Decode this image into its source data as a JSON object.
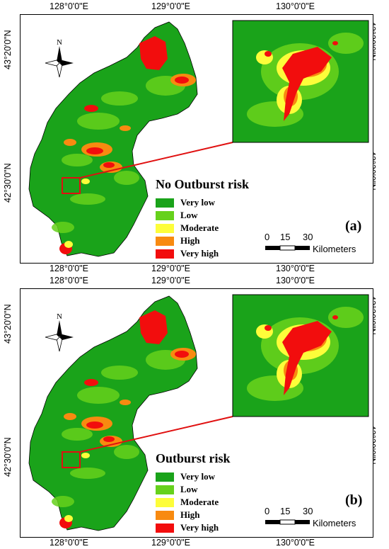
{
  "panels": [
    {
      "legend_title": "No Outburst risk",
      "panel_label": "(a)"
    },
    {
      "legend_title": "Outburst risk",
      "panel_label": "(b)"
    }
  ],
  "axes": {
    "longitude_labels": [
      "128°0'0\"E",
      "129°0'0\"E",
      "130°0'0\"E"
    ],
    "latitude_labels": [
      "43°20'0\"N",
      "42°30'0\"N"
    ]
  },
  "legend": {
    "classes": [
      {
        "label": "Very low",
        "color": "#1aa31a"
      },
      {
        "label": "Low",
        "color": "#66d11c"
      },
      {
        "label": "Moderate",
        "color": "#fdfd3a"
      },
      {
        "label": "High",
        "color": "#f88a10"
      },
      {
        "label": "Very high",
        "color": "#f20d0d"
      }
    ]
  },
  "scale_bar": {
    "ticks": [
      "0",
      "15",
      "30"
    ],
    "units": "Kilometers"
  },
  "north_arrow": {
    "label": "N"
  },
  "colors": {
    "inset_background": "#1aa31a",
    "connector_line": "#e01010"
  }
}
